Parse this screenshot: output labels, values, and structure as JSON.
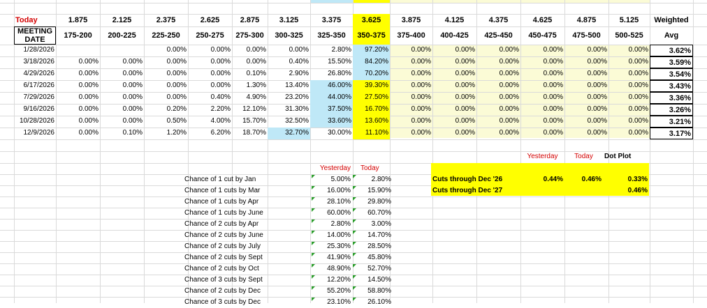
{
  "colors": {
    "today_red": "#d40000",
    "highlight_yellow": "#ffff00",
    "light_blue": "#bfe8f7",
    "light_yellow": "#fbfbd6",
    "grid": "#dadada"
  },
  "today_label": "Today",
  "rate_headers": [
    "1.875",
    "2.125",
    "2.375",
    "2.625",
    "2.875",
    "3.125",
    "3.375",
    "3.625",
    "3.875",
    "4.125",
    "4.375",
    "4.625",
    "4.875",
    "5.125"
  ],
  "weighted_label": "Weighted",
  "meeting_date_label": "MEETING DATE",
  "range_headers": [
    "175-200",
    "200-225",
    "225-250",
    "250-275",
    "275-300",
    "300-325",
    "325-350",
    "350-375",
    "375-400",
    "400-425",
    "425-450",
    "450-475",
    "475-500",
    "500-525"
  ],
  "avg_label": "Avg",
  "rows": [
    {
      "date": "1/28/2026",
      "values": [
        "",
        "",
        "0.00%",
        "0.00%",
        "0.00%",
        "0.00%",
        "2.80%",
        "97.20%",
        "0.00%",
        "0.00%",
        "0.00%",
        "0.00%",
        "0.00%",
        "0.00%"
      ],
      "avg": "3.62%"
    },
    {
      "date": "3/18/2026",
      "values": [
        "0.00%",
        "0.00%",
        "0.00%",
        "0.00%",
        "0.00%",
        "0.40%",
        "15.50%",
        "84.20%",
        "0.00%",
        "0.00%",
        "0.00%",
        "0.00%",
        "0.00%",
        "0.00%"
      ],
      "avg": "3.59%"
    },
    {
      "date": "4/29/2026",
      "values": [
        "0.00%",
        "0.00%",
        "0.00%",
        "0.00%",
        "0.10%",
        "2.90%",
        "26.80%",
        "70.20%",
        "0.00%",
        "0.00%",
        "0.00%",
        "0.00%",
        "0.00%",
        "0.00%"
      ],
      "avg": "3.54%"
    },
    {
      "date": "6/17/2026",
      "values": [
        "0.00%",
        "0.00%",
        "0.00%",
        "0.00%",
        "1.30%",
        "13.40%",
        "46.00%",
        "39.30%",
        "0.00%",
        "0.00%",
        "0.00%",
        "0.00%",
        "0.00%",
        "0.00%"
      ],
      "avg": "3.43%"
    },
    {
      "date": "7/29/2026",
      "values": [
        "0.00%",
        "0.00%",
        "0.00%",
        "0.40%",
        "4.90%",
        "23.20%",
        "44.00%",
        "27.50%",
        "0.00%",
        "0.00%",
        "0.00%",
        "0.00%",
        "0.00%",
        "0.00%"
      ],
      "avg": "3.36%"
    },
    {
      "date": "9/16/2026",
      "values": [
        "0.00%",
        "0.00%",
        "0.20%",
        "2.20%",
        "12.10%",
        "31.30%",
        "37.50%",
        "16.70%",
        "0.00%",
        "0.00%",
        "0.00%",
        "0.00%",
        "0.00%",
        "0.00%"
      ],
      "avg": "3.26%"
    },
    {
      "date": "10/28/2026",
      "values": [
        "0.00%",
        "0.00%",
        "0.50%",
        "4.00%",
        "15.70%",
        "32.50%",
        "33.60%",
        "13.60%",
        "0.00%",
        "0.00%",
        "0.00%",
        "0.00%",
        "0.00%",
        "0.00%"
      ],
      "avg": "3.21%"
    },
    {
      "date": "12/9/2026",
      "values": [
        "0.00%",
        "0.10%",
        "1.20%",
        "6.20%",
        "18.70%",
        "32.70%",
        "30.00%",
        "11.10%",
        "0.00%",
        "0.00%",
        "0.00%",
        "0.00%",
        "0.00%",
        "0.00%"
      ],
      "avg": "3.17%"
    }
  ],
  "chance": {
    "yesterday_label": "Yesterday",
    "today_label": "Today",
    "rows": [
      {
        "label": "Chance of 1 cut by Jan",
        "yesterday": "5.00%",
        "today": "2.80%"
      },
      {
        "label": "Chance of 1 cuts by Mar",
        "yesterday": "16.00%",
        "today": "15.90%"
      },
      {
        "label": "Chance of 1 cuts by Apr",
        "yesterday": "28.10%",
        "today": "29.80%"
      },
      {
        "label": "Chance of 1 cuts by June",
        "yesterday": "60.00%",
        "today": "60.70%"
      },
      {
        "label": "Chance of 2 cuts by Apr",
        "yesterday": "2.80%",
        "today": "3.00%"
      },
      {
        "label": "Chance of 2 cuts by June",
        "yesterday": "14.00%",
        "today": "14.70%"
      },
      {
        "label": "Chance of 2 cuts by July",
        "yesterday": "25.30%",
        "today": "28.50%"
      },
      {
        "label": "Chance of 2 cuts by Sept",
        "yesterday": "41.90%",
        "today": "45.80%"
      },
      {
        "label": "Chance of 2 cuts by Oct",
        "yesterday": "48.90%",
        "today": "52.70%"
      },
      {
        "label": "Chance of 3 cuts by Sept",
        "yesterday": "12.20%",
        "today": "14.50%"
      },
      {
        "label": "Chance of 2 cuts by Dec",
        "yesterday": "55.20%",
        "today": "58.80%"
      },
      {
        "label": "Chance of 3 cuts by Dec",
        "yesterday": "23.10%",
        "today": "26.10%"
      }
    ]
  },
  "cuts": {
    "yesterday_label": "Yesterday",
    "today_label": "Today",
    "dot_plot_label": "Dot Plot",
    "rows": [
      {
        "label": "Cuts through Dec '26",
        "yesterday": "0.44%",
        "today": "0.46%",
        "dot_plot": "0.33%"
      },
      {
        "label": "Cuts through Dec '27",
        "yesterday": "",
        "today": "",
        "dot_plot": "0.46%"
      }
    ]
  }
}
